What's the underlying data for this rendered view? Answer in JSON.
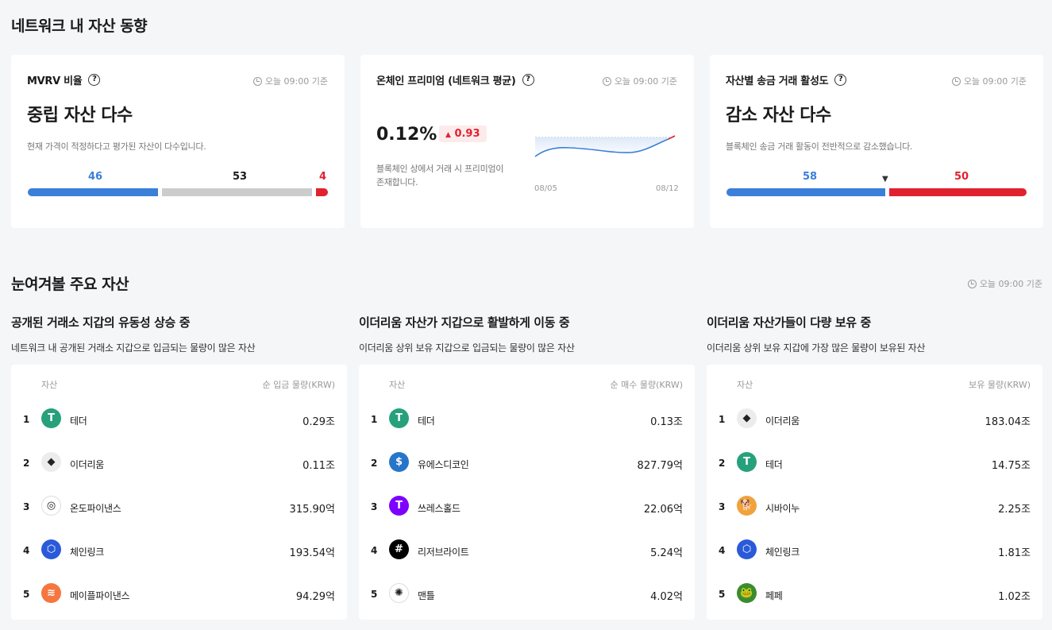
{
  "section1": {
    "title": "네트워크 내 자산 동향",
    "cards": [
      {
        "title": "MVRV 비율",
        "time": "오늘 09:00 기준",
        "headline": "중립 자산 다수",
        "description": "현재 가격이 적정하다고 평가된 자산이 다수입니다.",
        "bar": [
          {
            "value": 46,
            "color": "#3a7fd9"
          },
          {
            "value": 53,
            "color": "#cccccc"
          },
          {
            "value": 4,
            "color": "#e0222f"
          }
        ],
        "bar_labels": [
          "46",
          "53",
          "4"
        ]
      },
      {
        "title": "온체인 프리미엄 (네트워크 평균)",
        "time": "오늘 09:00 기준",
        "value": "0.12%",
        "change": "0.93",
        "change_arrow": "▲",
        "description": "블록체인 상에서 거래 시 프리미엄이 존재합니다.",
        "chart_start": "08/05",
        "chart_end": "08/12"
      },
      {
        "title": "자산별 송금 거래 활성도",
        "time": "오늘 09:00 기준",
        "headline": "감소 자산 다수",
        "description": "블록체인 송금 거래 활동이 전반적으로 감소했습니다.",
        "bar": [
          {
            "value": 58,
            "color": "#3a7fd9"
          },
          {
            "value": 50,
            "color": "#e0222f"
          }
        ],
        "bar_labels": [
          "58",
          "50"
        ],
        "marker": "▼"
      }
    ]
  },
  "section2": {
    "title": "눈여겨볼 주요 자산",
    "time": "오늘 09:00 기준",
    "columns": [
      {
        "title": "공개된 거래소 지갑의 유동성 상승 중",
        "subtitle": "네트워크 내 공개된 거래소 지갑으로 입금되는 물량이 많은 자산",
        "header_asset": "자산",
        "header_value": "순 입금 물량(KRW)",
        "rows": [
          {
            "rank": "1",
            "name": "테더",
            "value": "0.29조",
            "icon": "tether-icon",
            "color": "#26a17b",
            "glyph": "T"
          },
          {
            "rank": "2",
            "name": "이더리움",
            "value": "0.11조",
            "icon": "ethereum-icon",
            "color": "#ececec",
            "glyph": "◆"
          },
          {
            "rank": "3",
            "name": "온도파이낸스",
            "value": "315.90억",
            "icon": "ondo-icon",
            "color": "#ffffff",
            "glyph": "◎"
          },
          {
            "rank": "4",
            "name": "체인링크",
            "value": "193.54억",
            "icon": "chainlink-icon",
            "color": "#2a5ada",
            "glyph": "⬡"
          },
          {
            "rank": "5",
            "name": "메이플파이낸스",
            "value": "94.29억",
            "icon": "maple-icon",
            "color": "#f5763f",
            "glyph": "≋"
          }
        ]
      },
      {
        "title": "이더리움 자산가 지갑으로 활발하게 이동 중",
        "subtitle": "이더리움 상위 보유 지갑으로 입금되는 물량이 많은 자산",
        "header_asset": "자산",
        "header_value": "순 매수 물량(KRW)",
        "rows": [
          {
            "rank": "1",
            "name": "테더",
            "value": "0.13조",
            "icon": "tether-icon",
            "color": "#26a17b",
            "glyph": "T"
          },
          {
            "rank": "2",
            "name": "유에스디코인",
            "value": "827.79억",
            "icon": "usdc-icon",
            "color": "#2775ca",
            "glyph": "$"
          },
          {
            "rank": "3",
            "name": "쓰레스홀드",
            "value": "22.06억",
            "icon": "threshold-icon",
            "color": "#7d00ff",
            "glyph": "T"
          },
          {
            "rank": "4",
            "name": "리저브라이트",
            "value": "5.24억",
            "icon": "reserve-rights-icon",
            "color": "#000000",
            "glyph": "#"
          },
          {
            "rank": "5",
            "name": "맨틀",
            "value": "4.02억",
            "icon": "mantle-icon",
            "color": "#ffffff",
            "glyph": "✺"
          }
        ]
      },
      {
        "title": "이더리움 자산가들이 다량 보유 중",
        "subtitle": "이더리움 상위 보유 지갑에 가장 많은 물량이 보유된 자산",
        "header_asset": "자산",
        "header_value": "보유 물량(KRW)",
        "rows": [
          {
            "rank": "1",
            "name": "이더리움",
            "value": "183.04조",
            "icon": "ethereum-icon",
            "color": "#ececec",
            "glyph": "◆"
          },
          {
            "rank": "2",
            "name": "테더",
            "value": "14.75조",
            "icon": "tether-icon",
            "color": "#26a17b",
            "glyph": "T"
          },
          {
            "rank": "3",
            "name": "시바이누",
            "value": "2.25조",
            "icon": "shiba-inu-icon",
            "color": "#f0a23b",
            "glyph": "🐕"
          },
          {
            "rank": "4",
            "name": "체인링크",
            "value": "1.81조",
            "icon": "chainlink-icon",
            "color": "#2a5ada",
            "glyph": "⬡"
          },
          {
            "rank": "5",
            "name": "페페",
            "value": "1.02조",
            "icon": "pepe-icon",
            "color": "#3d8b2f",
            "glyph": "🐸"
          }
        ]
      }
    ]
  }
}
